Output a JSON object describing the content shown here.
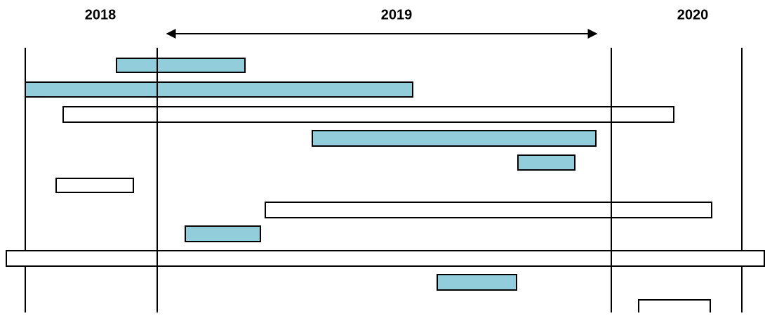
{
  "years": [
    "2018",
    "2019",
    "2020"
  ]
}
